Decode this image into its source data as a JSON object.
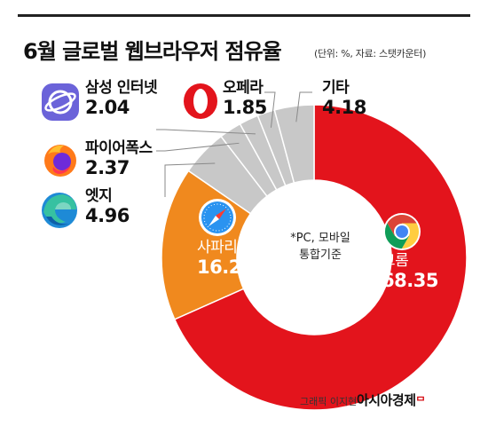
{
  "title": "6월 글로벌 웹브라우저 점유율",
  "subtitle": "(단위: %, 자료: 스탯카운터)",
  "note_lines": [
    "*PC, 모바일",
    "통합기준"
  ],
  "credit": "그래픽 이지현",
  "brand": "아시아경제",
  "brand_mark": "ᄆ",
  "chart_data": {
    "type": "pie",
    "title": "6월 글로벌 웹브라우저 점유율",
    "unit": "%",
    "categories": [
      "크롬",
      "사파리",
      "엣지",
      "파이어폭스",
      "삼성 인터넷",
      "오페라",
      "기타"
    ],
    "values": [
      68.35,
      16.25,
      4.96,
      2.37,
      2.04,
      1.85,
      4.18
    ],
    "value_labels": [
      "68.35",
      "16.25",
      "4.96",
      "2.37",
      "2.04",
      "1.85",
      "4.18"
    ],
    "colors": [
      "#e3141c",
      "#f0891e",
      "#c8c8c8",
      "#c8c8c8",
      "#c8c8c8",
      "#c8c8c8",
      "#c8c8c8"
    ],
    "donut": true,
    "start": "12 o'clock",
    "direction": "clockwise"
  },
  "icons": [
    "chrome-icon",
    "safari-icon",
    "edge-icon",
    "firefox-icon",
    "samsung-internet-icon",
    "opera-icon"
  ]
}
